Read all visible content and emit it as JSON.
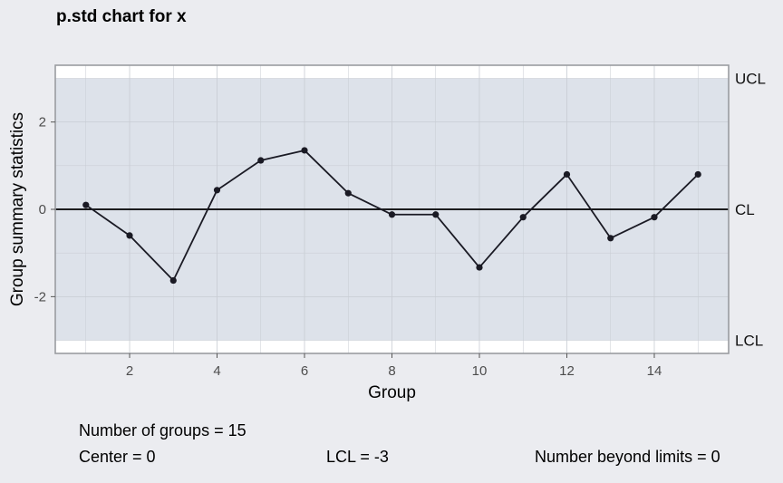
{
  "chart_data": {
    "type": "line",
    "title": "p.std chart for x",
    "xlabel": "Group",
    "ylabel": "Group summary statistics",
    "xlim": [
      0.3,
      15.7
    ],
    "ylim": [
      -3.3,
      3.3
    ],
    "xticks": [
      2,
      4,
      6,
      8,
      10,
      12,
      14
    ],
    "yticks": [
      -2,
      0,
      2
    ],
    "x": [
      1,
      2,
      3,
      4,
      5,
      6,
      7,
      8,
      9,
      10,
      11,
      12,
      13,
      14,
      15
    ],
    "values": [
      0.1,
      -0.6,
      -1.63,
      0.44,
      1.12,
      1.35,
      0.37,
      -0.12,
      -0.12,
      -1.33,
      -0.18,
      0.8,
      -0.66,
      -0.18,
      0.8
    ],
    "limits": {
      "ucl": {
        "label": "UCL",
        "value": 3
      },
      "cl": {
        "label": "CL",
        "value": 0
      },
      "lcl": {
        "label": "LCL",
        "value": -3
      }
    },
    "grid": true,
    "colors": {
      "background": "#ebecf0",
      "control_band": "#dde2ea",
      "line": "#1a1a24",
      "center_line": "#000000",
      "grid": "#c8ccd3"
    }
  },
  "summary": {
    "groups": "Number of groups = 15",
    "center": "Center = 0",
    "lcl": "LCL = -3",
    "beyond": "Number beyond limits = 0"
  }
}
